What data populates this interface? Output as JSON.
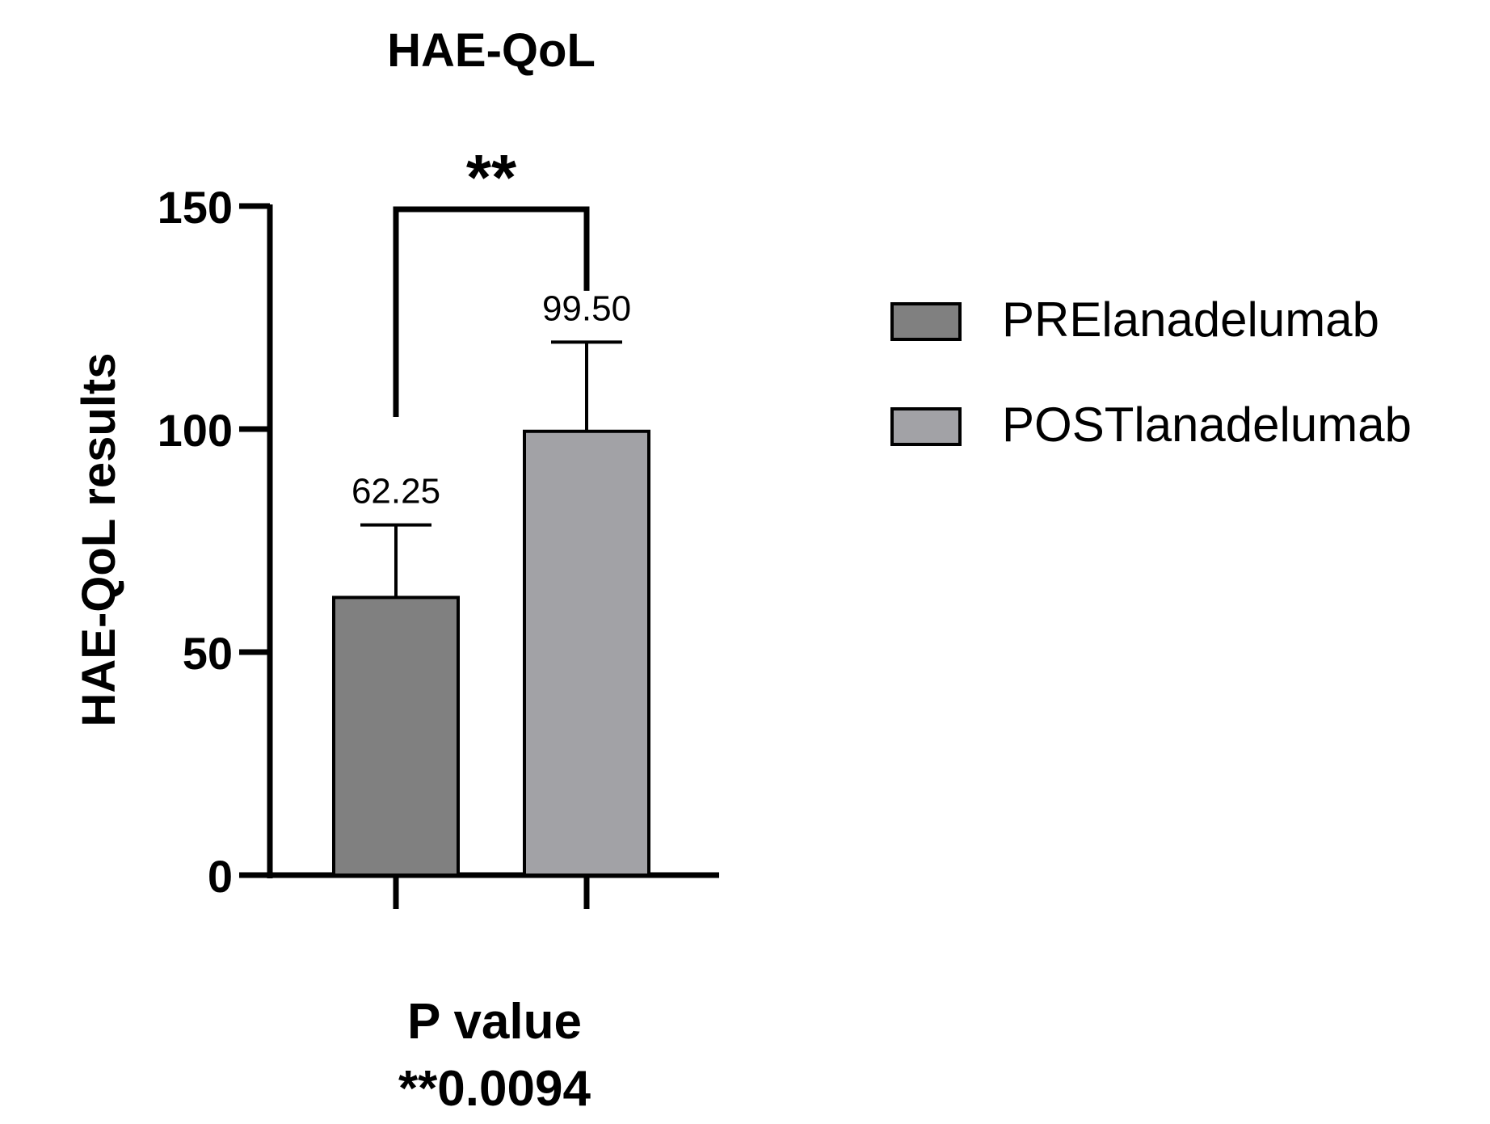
{
  "chart_data": {
    "type": "bar",
    "title": "HAE-QoL",
    "ylabel": "HAE-QoL results",
    "xlabel": "",
    "ylim": [
      0,
      150
    ],
    "yticks": [
      0,
      50,
      100,
      150
    ],
    "categories": [
      "PRElanadelumab",
      "POSTlanadelumab"
    ],
    "values": [
      62.25,
      99.5
    ],
    "value_labels": [
      "62.25",
      "99.50"
    ],
    "error_upper": [
      78.5,
      119.5
    ],
    "colors": [
      "#808080",
      "#a2a2a6"
    ],
    "legend": {
      "placement": "right",
      "entries": [
        "PRElanadelumab",
        "POSTlanadelumab"
      ]
    },
    "significance": {
      "label": "**",
      "between": [
        0,
        1
      ]
    },
    "footnote": {
      "line1": "P value",
      "line2": "**0.0094"
    },
    "grid": false
  }
}
